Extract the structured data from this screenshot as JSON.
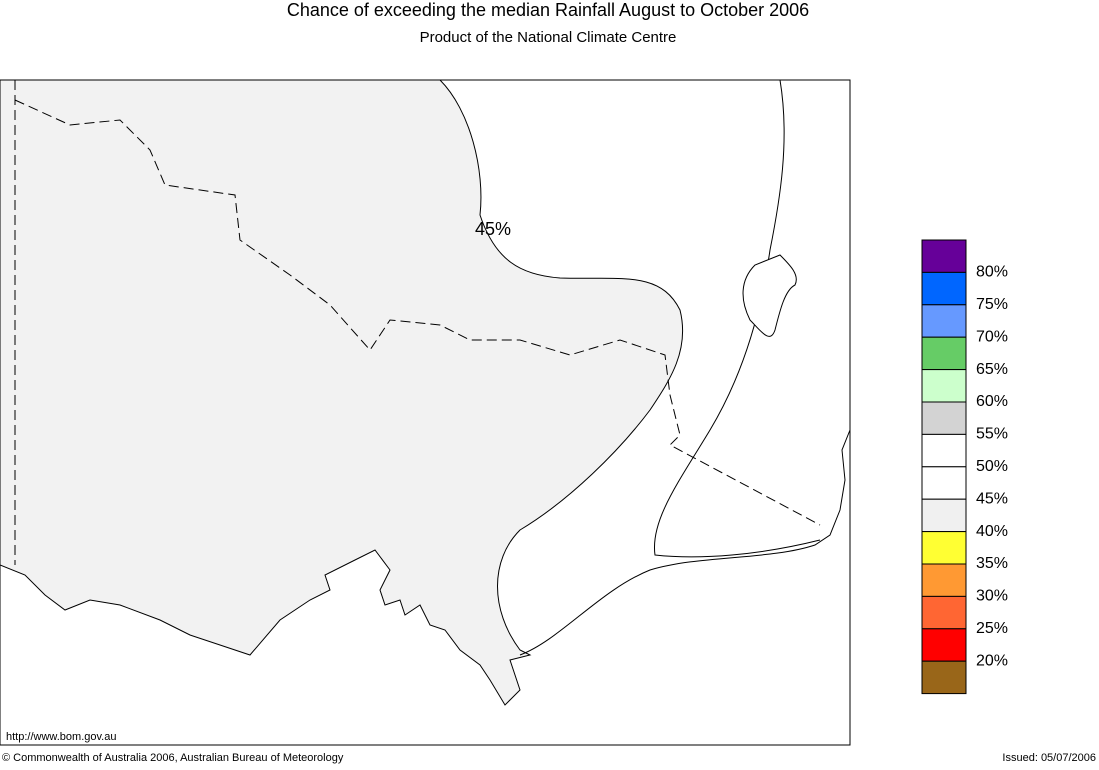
{
  "header": {
    "title": "Chance of exceeding the median Rainfall August to October 2006",
    "subtitle": "Product of the National Climate Centre"
  },
  "map": {
    "contour_label": "45%",
    "url_note": "http://www.bom.gov.au"
  },
  "legend": {
    "labels": [
      "80%",
      "75%",
      "70%",
      "65%",
      "60%",
      "55%",
      "50%",
      "45%",
      "40%",
      "35%",
      "30%",
      "25%",
      "20%"
    ],
    "colors": [
      "#660099",
      "#0066ff",
      "#6699ff",
      "#66cc66",
      "#ccffcc",
      "#d3d3d3",
      "#ffffff",
      "#ffffff",
      "#f0f0f0",
      "#ffff33",
      "#ff9933",
      "#ff6633",
      "#ff0000",
      "#996619"
    ]
  },
  "footer": {
    "copyright": "© Commonwealth of Australia 2006, Australian Bureau of Meteorology",
    "issued": "Issued: 05/07/2006"
  }
}
